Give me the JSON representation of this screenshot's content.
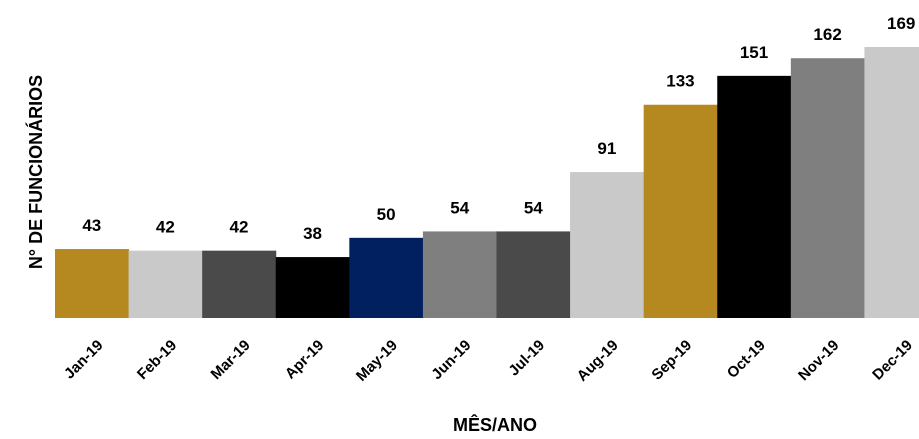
{
  "chart_data": {
    "type": "bar",
    "title": "",
    "xlabel": "MÊS/ANO",
    "ylabel": "N° DE FUNCIONÁRIOS",
    "categories": [
      "Jan-19",
      "Feb-19",
      "Mar-19",
      "Apr-19",
      "May-19",
      "Jun-19",
      "Jul-19",
      "Aug-19",
      "Sep-19",
      "Oct-19",
      "Nov-19",
      "Dec-19"
    ],
    "values": [
      43,
      42,
      42,
      38,
      50,
      54,
      54,
      91,
      133,
      151,
      162,
      169
    ],
    "colors": [
      "#b5891f",
      "#c9c9c9",
      "#4a4a4a",
      "#000000",
      "#002060",
      "#7f7f7f",
      "#4a4a4a",
      "#c9c9c9",
      "#b5891f",
      "#000000",
      "#7f7f7f",
      "#c9c9c9"
    ],
    "ylim": [
      0,
      169
    ],
    "grid": false,
    "legend": "none",
    "data_labels": true
  }
}
